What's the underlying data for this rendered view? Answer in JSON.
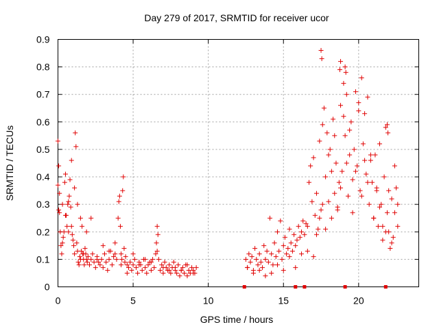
{
  "chart_data": {
    "type": "scatter",
    "title": "Day 279 of 2017, SRMTID for receiver ucor",
    "xlabel": "GPS time / hours",
    "ylabel": "SRMTID / TECUs",
    "xlim": [
      0,
      24
    ],
    "ylim": [
      0,
      0.9
    ],
    "xticks": [
      0,
      5,
      10,
      15,
      20
    ],
    "xtick_labels": [
      "0",
      "5",
      "10",
      "15",
      "20"
    ],
    "yticks": [
      0,
      0.1,
      0.2,
      0.3,
      0.4,
      0.5,
      0.6,
      0.7,
      0.8,
      0.9
    ],
    "ytick_labels": [
      "0",
      "0.1",
      "0.2",
      "0.3",
      "0.4",
      "0.5",
      "0.6",
      "0.7",
      "0.8",
      "0.9"
    ],
    "grid": true,
    "marker": "+",
    "color": "#e00000",
    "series": [
      {
        "name": "SRMTID",
        "x": [
          0.0,
          0.05,
          0.1,
          0.15,
          0.2,
          0.25,
          0.3,
          0.35,
          0.4,
          0.45,
          0.5,
          0.55,
          0.6,
          0.65,
          0.7,
          0.75,
          0.8,
          0.85,
          0.9,
          0.95,
          1.0,
          1.05,
          1.1,
          1.15,
          1.2,
          1.25,
          1.3,
          1.35,
          1.4,
          1.45,
          1.5,
          1.55,
          1.6,
          1.65,
          1.7,
          1.75,
          1.8,
          1.85,
          1.9,
          1.95,
          2.0,
          2.1,
          2.2,
          2.3,
          2.4,
          2.5,
          2.6,
          2.7,
          2.8,
          2.9,
          3.0,
          3.1,
          3.2,
          3.3,
          3.4,
          3.5,
          3.6,
          3.7,
          3.8,
          3.9,
          4.0,
          4.05,
          4.1,
          4.15,
          4.2,
          4.25,
          4.3,
          4.35,
          4.4,
          4.45,
          4.5,
          4.6,
          4.7,
          4.8,
          4.9,
          5.0,
          5.1,
          5.2,
          5.3,
          5.4,
          5.5,
          5.6,
          5.7,
          5.8,
          5.9,
          6.0,
          6.1,
          6.2,
          6.3,
          6.4,
          6.5,
          6.55,
          6.6,
          6.65,
          6.7,
          6.8,
          6.9,
          7.0,
          7.1,
          7.2,
          7.3,
          7.4,
          7.5,
          7.6,
          7.7,
          7.8,
          7.9,
          8.0,
          8.1,
          8.2,
          8.3,
          8.4,
          8.5,
          8.6,
          8.7,
          8.8,
          8.9,
          9.0,
          9.1,
          9.2,
          12.5,
          12.6,
          12.7,
          12.8,
          12.9,
          13.0,
          13.1,
          13.2,
          13.3,
          13.4,
          13.5,
          13.6,
          13.7,
          13.8,
          13.9,
          14.0,
          14.1,
          14.2,
          14.3,
          14.4,
          14.5,
          14.6,
          14.7,
          14.8,
          14.9,
          15.0,
          15.1,
          15.2,
          15.3,
          15.4,
          15.5,
          15.6,
          15.7,
          15.8,
          15.9,
          16.0,
          16.1,
          16.2,
          16.3,
          16.4,
          16.5,
          16.6,
          16.7,
          16.8,
          16.9,
          17.0,
          17.1,
          17.2,
          17.3,
          17.4,
          17.5,
          17.6,
          17.7,
          17.8,
          17.9,
          18.0,
          18.1,
          18.2,
          18.3,
          18.4,
          18.5,
          18.6,
          18.7,
          18.8,
          18.9,
          19.0,
          19.1,
          19.2,
          19.3,
          19.4,
          19.5,
          19.6,
          19.7,
          19.8,
          19.9,
          20.0,
          20.1,
          20.2,
          20.3,
          20.4,
          20.5,
          20.6,
          20.7,
          20.8,
          20.9,
          21.0,
          21.1,
          21.2,
          21.3,
          21.4,
          21.5,
          21.6,
          21.7,
          21.8,
          21.9,
          22.0,
          22.1,
          22.2,
          22.3,
          22.4,
          22.5,
          22.6,
          0.0,
          0.05,
          0.1,
          0.3,
          0.5,
          0.7,
          0.9,
          1.1,
          1.3,
          1.5,
          1.7,
          1.9,
          2.2,
          2.6,
          3.0,
          3.4,
          3.8,
          4.2,
          4.6,
          5.0,
          5.4,
          5.8,
          6.2,
          6.6,
          7.0,
          7.4,
          7.8,
          8.2,
          8.6,
          9.0,
          12.6,
          13.0,
          13.4,
          13.8,
          14.2,
          14.6,
          15.0,
          15.4,
          15.8,
          16.2,
          16.6,
          17.0,
          17.2,
          17.4,
          17.6,
          17.8,
          18.0,
          18.2,
          18.4,
          18.6,
          18.8,
          19.0,
          19.2,
          19.4,
          19.6,
          19.8,
          20.0,
          20.2,
          20.4,
          20.6,
          20.8,
          21.0,
          21.2,
          21.4,
          21.6,
          21.8,
          22.0,
          22.2,
          22.4,
          22.6,
          17.5,
          17.55,
          18.75,
          18.8,
          19.1,
          19.15,
          21.9,
          21.95
        ],
        "y": [
          0.37,
          0.44,
          0.27,
          0.2,
          0.15,
          0.12,
          0.16,
          0.18,
          0.2,
          0.38,
          0.41,
          0.26,
          0.22,
          0.3,
          0.2,
          0.33,
          0.39,
          0.29,
          0.46,
          0.19,
          0.17,
          0.15,
          0.12,
          0.56,
          0.51,
          0.16,
          0.13,
          0.09,
          0.08,
          0.11,
          0.1,
          0.13,
          0.22,
          0.12,
          0.1,
          0.08,
          0.14,
          0.12,
          0.1,
          0.09,
          0.11,
          0.08,
          0.1,
          0.12,
          0.09,
          0.07,
          0.11,
          0.09,
          0.08,
          0.1,
          0.07,
          0.12,
          0.09,
          0.06,
          0.1,
          0.13,
          0.08,
          0.11,
          0.16,
          0.1,
          0.25,
          0.31,
          0.33,
          0.22,
          0.12,
          0.1,
          0.35,
          0.4,
          0.14,
          0.09,
          0.11,
          0.08,
          0.07,
          0.09,
          0.06,
          0.08,
          0.1,
          0.07,
          0.05,
          0.09,
          0.08,
          0.06,
          0.1,
          0.07,
          0.05,
          0.08,
          0.09,
          0.06,
          0.1,
          0.07,
          0.12,
          0.16,
          0.22,
          0.19,
          0.1,
          0.06,
          0.08,
          0.05,
          0.09,
          0.07,
          0.06,
          0.08,
          0.05,
          0.07,
          0.09,
          0.06,
          0.05,
          0.08,
          0.04,
          0.06,
          0.07,
          0.05,
          0.08,
          0.04,
          0.06,
          0.05,
          0.07,
          0.06,
          0.05,
          0.07,
          0.1,
          0.07,
          0.12,
          0.09,
          0.11,
          0.06,
          0.14,
          0.1,
          0.08,
          0.12,
          0.09,
          0.07,
          0.15,
          0.1,
          0.13,
          0.09,
          0.25,
          0.12,
          0.08,
          0.16,
          0.11,
          0.2,
          0.13,
          0.24,
          0.1,
          0.15,
          0.18,
          0.12,
          0.14,
          0.21,
          0.16,
          0.13,
          0.19,
          0.15,
          0.17,
          0.22,
          0.18,
          0.2,
          0.24,
          0.19,
          0.23,
          0.22,
          0.38,
          0.44,
          0.31,
          0.47,
          0.26,
          0.34,
          0.21,
          0.53,
          0.28,
          0.59,
          0.65,
          0.4,
          0.56,
          0.31,
          0.5,
          0.25,
          0.61,
          0.34,
          0.45,
          0.28,
          0.38,
          0.66,
          0.42,
          0.74,
          0.55,
          0.7,
          0.33,
          0.48,
          0.6,
          0.39,
          0.5,
          0.71,
          0.44,
          0.64,
          0.35,
          0.76,
          0.52,
          0.63,
          0.41,
          0.69,
          0.3,
          0.46,
          0.38,
          0.25,
          0.48,
          0.36,
          0.22,
          0.52,
          0.3,
          0.17,
          0.4,
          0.58,
          0.27,
          0.2,
          0.14,
          0.32,
          0.18,
          0.44,
          0.36,
          0.22,
          0.53,
          0.28,
          0.34,
          0.3,
          0.26,
          0.31,
          0.22,
          0.36,
          0.3,
          0.25,
          0.12,
          0.2,
          0.25,
          0.1,
          0.15,
          0.13,
          0.12,
          0.08,
          0.05,
          0.12,
          0.08,
          0.1,
          0.09,
          0.13,
          0.07,
          0.06,
          0.07,
          0.06,
          0.08,
          0.05,
          0.07,
          0.05,
          0.06,
          0.04,
          0.05,
          0.08,
          0.06,
          0.11,
          0.07,
          0.12,
          0.13,
          0.11,
          0.19,
          0.25,
          0.3,
          0.21,
          0.48,
          0.42,
          0.55,
          0.29,
          0.36,
          0.62,
          0.45,
          0.57,
          0.27,
          0.42,
          0.67,
          0.33,
          0.46,
          0.38,
          0.48,
          0.25,
          0.35,
          0.29,
          0.22,
          0.2,
          0.35,
          0.16,
          0.27,
          0.3,
          0.86,
          0.83,
          0.79,
          0.82,
          0.8,
          0.78,
          0.59,
          0.56
        ],
        "markers_on_axis": [
          12.4,
          15.8,
          16.4,
          19.1,
          21.8
        ]
      }
    ]
  }
}
